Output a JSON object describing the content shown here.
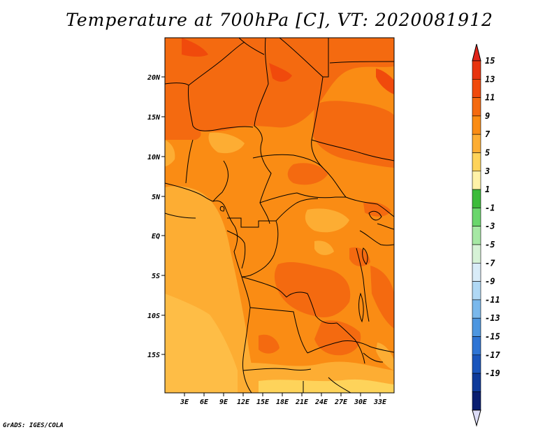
{
  "title": "Temperature at 700hPa [C], VT: 2020081912",
  "credit": "GrADS: IGES/COLA",
  "map": {
    "lat_ticks": [
      "20N",
      "15N",
      "10N",
      "5N",
      "EQ",
      "5S",
      "10S",
      "15S"
    ],
    "lon_ticks": [
      "3E",
      "6E",
      "9E",
      "12E",
      "15E",
      "18E",
      "21E",
      "24E",
      "27E",
      "30E",
      "33E"
    ]
  },
  "colorbar": {
    "labels": [
      "15",
      "13",
      "11",
      "9",
      "7",
      "5",
      "3",
      "1",
      "-1",
      "-3",
      "-5",
      "-7",
      "-9",
      "-11",
      "-13",
      "-15",
      "-17",
      "-19"
    ],
    "colors": [
      "#e8340f",
      "#f04a0c",
      "#f46a10",
      "#fa8c14",
      "#fdad33",
      "#fed35a",
      "#fff2a8",
      "#3cbb3a",
      "#6ad66c",
      "#a6e8a4",
      "#d6f2d6",
      "#d9ecf8",
      "#b0d8f4",
      "#7ab8ec",
      "#4d96e0",
      "#2e74d4",
      "#1a55bc",
      "#0e3a9a",
      "#0a1e70"
    ],
    "top_arrow_color": "#e0241a",
    "bottom_arrow_color": "#dcdcf6"
  }
}
